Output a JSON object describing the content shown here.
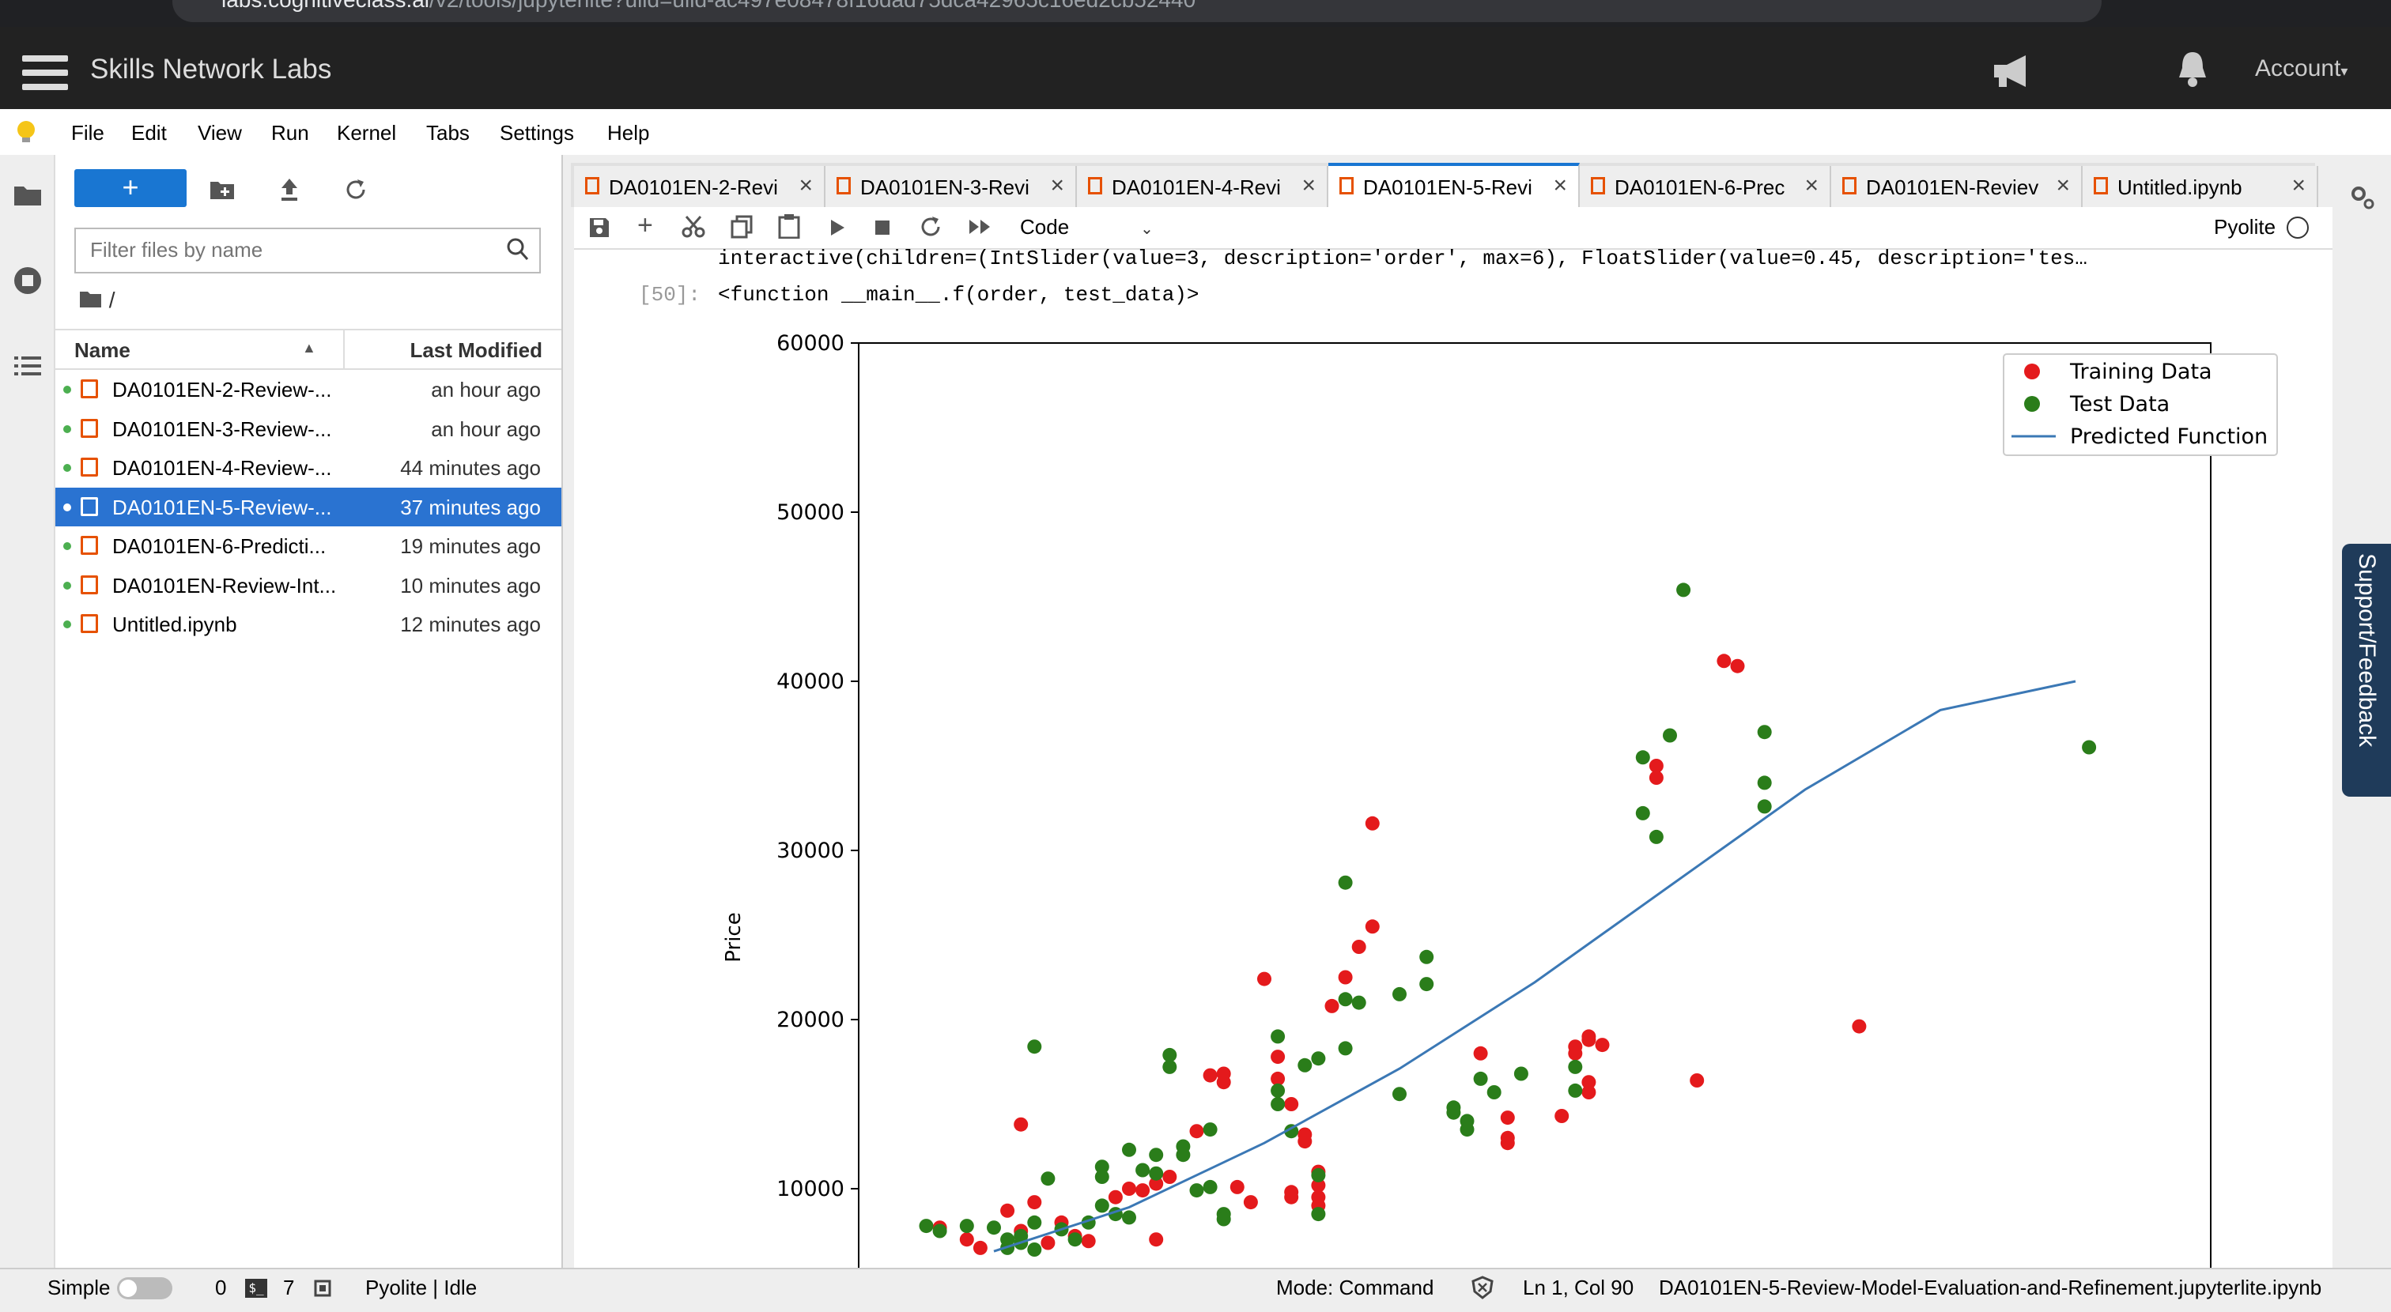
{
  "browser": {
    "url_host": "labs.cognitiveclass.ai",
    "url_path": "/v2/tools/jupyterlite?ulid=ulid-ac497e08478f16dad75dca42965c16ed2cb52440"
  },
  "header": {
    "title": "Skills Network Labs",
    "account": "Account"
  },
  "menu": [
    "File",
    "Edit",
    "View",
    "Run",
    "Kernel",
    "Tabs",
    "Settings",
    "Help"
  ],
  "filebrowser": {
    "filter_placeholder": "Filter files by name",
    "breadcrumb": "/",
    "col_name": "Name",
    "col_modified": "Last Modified",
    "files": [
      {
        "name": "DA0101EN-2-Review-...",
        "modified": "an hour ago",
        "selected": false
      },
      {
        "name": "DA0101EN-3-Review-...",
        "modified": "an hour ago",
        "selected": false
      },
      {
        "name": "DA0101EN-4-Review-...",
        "modified": "44 minutes ago",
        "selected": false
      },
      {
        "name": "DA0101EN-5-Review-...",
        "modified": "37 minutes ago",
        "selected": true
      },
      {
        "name": "DA0101EN-6-Predicti...",
        "modified": "19 minutes ago",
        "selected": false
      },
      {
        "name": "DA0101EN-Review-Int...",
        "modified": "10 minutes ago",
        "selected": false
      },
      {
        "name": "Untitled.ipynb",
        "modified": "12 minutes ago",
        "selected": false
      }
    ]
  },
  "tabs": [
    {
      "label": "DA0101EN-2-Revi",
      "active": false
    },
    {
      "label": "DA0101EN-3-Revi",
      "active": false
    },
    {
      "label": "DA0101EN-4-Revi",
      "active": false
    },
    {
      "label": "DA0101EN-5-Revi",
      "active": true
    },
    {
      "label": "DA0101EN-6-Prec",
      "active": false
    },
    {
      "label": "DA0101EN-Reviev",
      "active": false
    },
    {
      "label": "Untitled.ipynb",
      "active": false
    }
  ],
  "notebook": {
    "cell_type": "Code",
    "kernel": "Pyolite",
    "output_line1": "interactive(children=(IntSlider(value=3, description='order', max=6), FloatSlider(value=0.45, description='tes…",
    "prompt": "[50]:",
    "output_line2": "<function __main__.f(order, test_data)>"
  },
  "support": "Support/Feedback",
  "statusbar": {
    "mode_label": "Simple",
    "terminals": "0",
    "kernels": "7",
    "kernel_status": "Pyolite | Idle",
    "mode": "Mode: Command",
    "cursor": "Ln 1, Col 90",
    "filename": "DA0101EN-5-Review-Model-Evaluation-and-Refinement.jupyterlite.ipynb"
  },
  "colors": {
    "accent": "#1976d2",
    "train": "#e41a1c",
    "test": "#2a7d1a",
    "line": "#3b78b5"
  },
  "chart_data": {
    "type": "scatter",
    "ylabel": "Price",
    "ylim": [
      5500,
      60000
    ],
    "xlim": [
      0,
      100
    ],
    "y_ticks": [
      "10000",
      "20000",
      "30000",
      "40000",
      "50000",
      "60000"
    ],
    "legend": [
      "Training Data",
      "Test Data",
      "Predicted Function"
    ],
    "legend_position": "top-right",
    "series": [
      {
        "name": "Training Data",
        "points": [
          [
            6,
            7700
          ],
          [
            8,
            7000
          ],
          [
            9,
            6500
          ],
          [
            11,
            8700
          ],
          [
            12,
            7500
          ],
          [
            12,
            13800
          ],
          [
            13,
            9200
          ],
          [
            14,
            6800
          ],
          [
            15,
            8000
          ],
          [
            16,
            7200
          ],
          [
            17,
            6900
          ],
          [
            19,
            9500
          ],
          [
            20,
            10000
          ],
          [
            21,
            9900
          ],
          [
            22,
            10300
          ],
          [
            23,
            10700
          ],
          [
            22,
            7000
          ],
          [
            25,
            13400
          ],
          [
            26,
            16700
          ],
          [
            27,
            16300
          ],
          [
            27,
            16800
          ],
          [
            28,
            10100
          ],
          [
            29,
            9200
          ],
          [
            30,
            22400
          ],
          [
            31,
            17800
          ],
          [
            31,
            16500
          ],
          [
            32,
            15000
          ],
          [
            33,
            13200
          ],
          [
            33,
            12800
          ],
          [
            32,
            9800
          ],
          [
            32,
            9500
          ],
          [
            34,
            11000
          ],
          [
            34,
            10200
          ],
          [
            34,
            9500
          ],
          [
            34,
            9000
          ],
          [
            36,
            22500
          ],
          [
            35,
            20800
          ],
          [
            37,
            24300
          ],
          [
            38,
            25500
          ],
          [
            38,
            31600
          ],
          [
            46,
            18000
          ],
          [
            48,
            12700
          ],
          [
            48,
            13000
          ],
          [
            48,
            14200
          ],
          [
            52,
            14300
          ],
          [
            59,
            35000
          ],
          [
            59,
            34300
          ],
          [
            53,
            18400
          ],
          [
            53,
            18000
          ],
          [
            54,
            18800
          ],
          [
            54,
            19000
          ],
          [
            55,
            18500
          ],
          [
            54,
            16300
          ],
          [
            54,
            15700
          ],
          [
            62,
            16400
          ],
          [
            64,
            41200
          ],
          [
            65,
            40900
          ],
          [
            74,
            19600
          ]
        ]
      },
      {
        "name": "Test Data",
        "points": [
          [
            5,
            7800
          ],
          [
            6,
            7500
          ],
          [
            8,
            7800
          ],
          [
            10,
            7700
          ],
          [
            11,
            6500
          ],
          [
            11,
            7000
          ],
          [
            12,
            7200
          ],
          [
            12,
            6800
          ],
          [
            13,
            6400
          ],
          [
            13,
            8000
          ],
          [
            13,
            18400
          ],
          [
            14,
            10600
          ],
          [
            15,
            7600
          ],
          [
            16,
            7000
          ],
          [
            17,
            8000
          ],
          [
            18,
            11300
          ],
          [
            18,
            10700
          ],
          [
            18,
            9000
          ],
          [
            19,
            8500
          ],
          [
            20,
            8300
          ],
          [
            20,
            12300
          ],
          [
            21,
            11100
          ],
          [
            22,
            12000
          ],
          [
            22,
            10900
          ],
          [
            23,
            17900
          ],
          [
            23,
            17200
          ],
          [
            24,
            12500
          ],
          [
            24,
            12000
          ],
          [
            25,
            9900
          ],
          [
            26,
            13500
          ],
          [
            26,
            10100
          ],
          [
            27,
            8500
          ],
          [
            27,
            8200
          ],
          [
            31,
            19000
          ],
          [
            31,
            15800
          ],
          [
            31,
            15000
          ],
          [
            32,
            13400
          ],
          [
            33,
            17300
          ],
          [
            34,
            17700
          ],
          [
            34,
            10800
          ],
          [
            34,
            8500
          ],
          [
            36,
            28100
          ],
          [
            36,
            21200
          ],
          [
            36,
            18300
          ],
          [
            37,
            21000
          ],
          [
            40,
            21500
          ],
          [
            40,
            15600
          ],
          [
            42,
            23700
          ],
          [
            42,
            22100
          ],
          [
            44,
            14800
          ],
          [
            44,
            14500
          ],
          [
            45,
            13500
          ],
          [
            45,
            14000
          ],
          [
            46,
            16500
          ],
          [
            47,
            15700
          ],
          [
            49,
            16800
          ],
          [
            53,
            17200
          ],
          [
            53,
            15800
          ],
          [
            58,
            35500
          ],
          [
            58,
            32200
          ],
          [
            59,
            30800
          ],
          [
            60,
            36800
          ],
          [
            61,
            45400
          ],
          [
            67,
            37000
          ],
          [
            67,
            34000
          ],
          [
            67,
            32600
          ],
          [
            91,
            36100
          ]
        ]
      }
    ],
    "curve": [
      [
        10,
        6300
      ],
      [
        20,
        8900
      ],
      [
        30,
        12700
      ],
      [
        40,
        17100
      ],
      [
        50,
        22200
      ],
      [
        60,
        27900
      ],
      [
        70,
        33600
      ],
      [
        80,
        38300
      ],
      [
        90,
        40000
      ]
    ]
  }
}
